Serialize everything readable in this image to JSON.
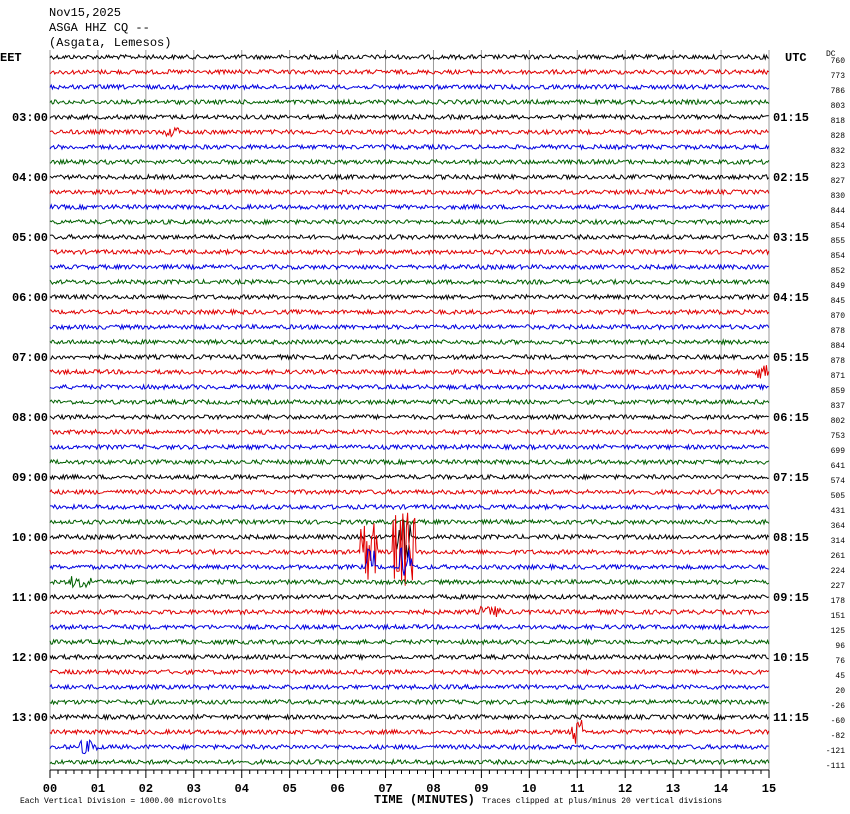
{
  "header": {
    "date": "Nov15,2025",
    "station": "ASGA HHZ CQ --",
    "location": "(Asgata, Lemesos)",
    "left_zone": "EET",
    "right_zone": "UTC",
    "dc_label": "DC"
  },
  "left_labels": [
    "03:00",
    "04:00",
    "05:00",
    "06:00",
    "07:00",
    "08:00",
    "09:00",
    "10:00",
    "11:00",
    "12:00",
    "13:00"
  ],
  "right_labels": [
    "01:15",
    "02:15",
    "03:15",
    "04:15",
    "05:15",
    "06:15",
    "07:15",
    "08:15",
    "09:15",
    "10:15",
    "11:15"
  ],
  "dc_values": [
    760,
    773,
    786,
    803,
    818,
    828,
    832,
    823,
    827,
    830,
    844,
    854,
    855,
    854,
    852,
    849,
    845,
    870,
    878,
    884,
    878,
    871,
    859,
    837,
    802,
    753,
    699,
    641,
    574,
    505,
    431,
    364,
    314,
    261,
    224,
    227,
    178,
    151,
    125,
    96,
    76,
    45,
    20,
    -26,
    -60,
    -82,
    -121,
    -111
  ],
  "trace_colors": [
    "#000000",
    "#e00000",
    "#0000e0",
    "#006000"
  ],
  "x_axis": {
    "label": "TIME (MINUTES)",
    "ticks": [
      "00",
      "01",
      "02",
      "03",
      "04",
      "05",
      "06",
      "07",
      "08",
      "09",
      "10",
      "11",
      "12",
      "13",
      "14",
      "15"
    ]
  },
  "footer": {
    "scale": "Each Vertical Division = 1000.00 microvolts",
    "clip": "Traces clipped at plus/minus 20 vertical divisions"
  }
}
